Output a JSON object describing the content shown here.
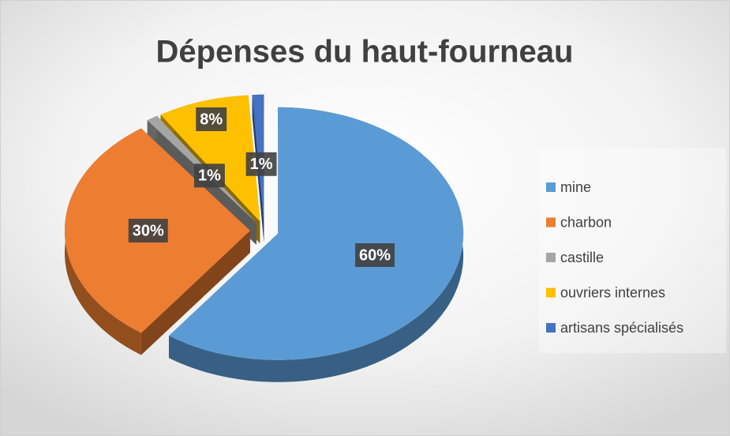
{
  "chart_data": {
    "type": "pie",
    "title": "Dépenses du haut-fourneau",
    "categories": [
      "mine",
      "charbon",
      "castille",
      "ouvriers internes",
      "artisans spécialisés"
    ],
    "values": [
      60,
      30,
      1,
      8,
      1
    ],
    "value_labels": [
      "60%",
      "30%",
      "1%",
      "8%",
      "1%"
    ],
    "colors": [
      "#5b9bd5",
      "#ed7d31",
      "#a5a5a5",
      "#ffc000",
      "#4472c4"
    ],
    "legend": "right"
  }
}
